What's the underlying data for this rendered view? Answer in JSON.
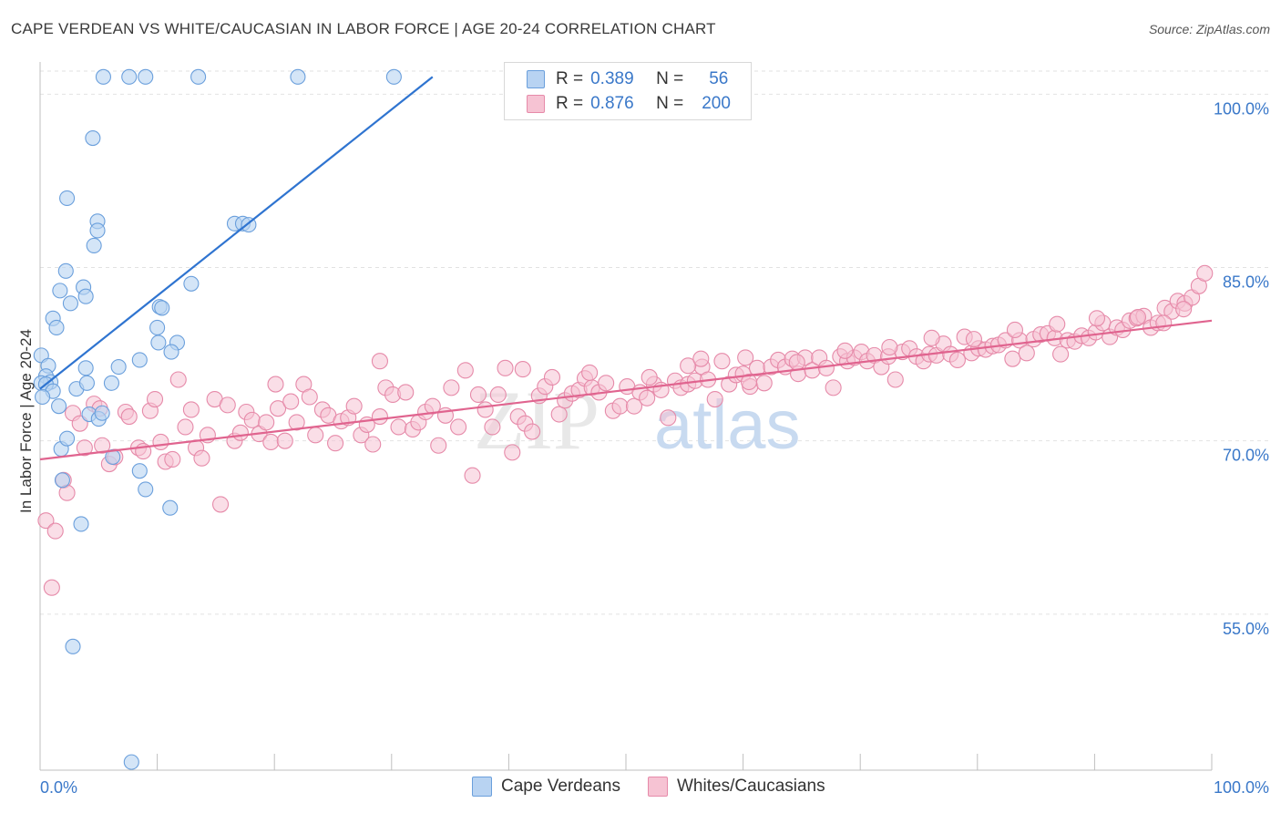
{
  "title": "CAPE VERDEAN VS WHITE/CAUCASIAN IN LABOR FORCE | AGE 20-24 CORRELATION CHART",
  "source": "Source: ZipAtlas.com",
  "watermark": {
    "zip": "ZIP",
    "atlas": "atlas"
  },
  "legend": {
    "rows": [
      {
        "r_label": "R =",
        "r_value": "0.389",
        "n_label": "N =",
        "n_value": "56"
      },
      {
        "r_label": "R =",
        "r_value": "0.876",
        "n_label": "N =",
        "n_value": "200"
      }
    ]
  },
  "bottom_legend": [
    "Cape Verdeans",
    "Whites/Caucasians"
  ],
  "colors": {
    "blue_fill": "#b8d3f2",
    "blue_stroke": "#6a9fdc",
    "blue_line": "#2f74d0",
    "pink_fill": "#f6c3d3",
    "pink_stroke": "#e68aa9",
    "pink_line": "#e0648f",
    "tick_text": "#3a78c9"
  },
  "chart_data": {
    "type": "scatter",
    "title": "CAPE VERDEAN VS WHITE/CAUCASIAN IN LABOR FORCE | AGE 20-24 CORRELATION CHART",
    "xlabel": "",
    "ylabel": "In Labor Force | Age 20-24",
    "xlim": [
      0,
      100
    ],
    "ylim": [
      41.5,
      102
    ],
    "x_tick_labels": [
      "0.0%",
      "100.0%"
    ],
    "y_ticks": [
      55,
      70,
      85,
      100
    ],
    "y_tick_labels": [
      "55.0%",
      "70.0%",
      "85.0%",
      "100.0%"
    ],
    "series": [
      {
        "name": "Cape Verdeans",
        "trend": {
          "x": [
            0,
            33.5
          ],
          "y": [
            74.5,
            101.5
          ]
        },
        "points": [
          [
            5.4,
            101.5
          ],
          [
            7.6,
            101.5
          ],
          [
            9.0,
            101.5
          ],
          [
            13.5,
            101.5
          ],
          [
            22.0,
            101.5
          ],
          [
            30.2,
            101.5
          ],
          [
            4.5,
            96.2
          ],
          [
            2.3,
            91.0
          ],
          [
            4.9,
            89.0
          ],
          [
            4.9,
            88.2
          ],
          [
            4.6,
            86.9
          ],
          [
            16.6,
            88.8
          ],
          [
            17.3,
            88.8
          ],
          [
            17.8,
            88.7
          ],
          [
            2.2,
            84.7
          ],
          [
            1.7,
            83.0
          ],
          [
            3.7,
            83.3
          ],
          [
            3.9,
            82.5
          ],
          [
            2.6,
            81.9
          ],
          [
            1.1,
            80.6
          ],
          [
            1.4,
            79.8
          ],
          [
            10.2,
            81.6
          ],
          [
            10.4,
            81.5
          ],
          [
            12.9,
            83.6
          ],
          [
            0.1,
            77.4
          ],
          [
            0.7,
            76.5
          ],
          [
            0.5,
            75.6
          ],
          [
            0.9,
            75.1
          ],
          [
            0.1,
            75.0
          ],
          [
            0.5,
            74.9
          ],
          [
            1.1,
            74.3
          ],
          [
            0.2,
            73.8
          ],
          [
            3.1,
            74.5
          ],
          [
            4.0,
            75.0
          ],
          [
            6.1,
            75.0
          ],
          [
            3.9,
            76.3
          ],
          [
            6.7,
            76.4
          ],
          [
            8.5,
            77.0
          ],
          [
            10.0,
            79.8
          ],
          [
            10.1,
            78.5
          ],
          [
            11.7,
            78.5
          ],
          [
            11.2,
            77.7
          ],
          [
            1.6,
            73.0
          ],
          [
            4.2,
            72.3
          ],
          [
            5.0,
            71.9
          ],
          [
            5.3,
            72.4
          ],
          [
            1.8,
            69.3
          ],
          [
            2.3,
            70.2
          ],
          [
            6.2,
            68.6
          ],
          [
            8.5,
            67.4
          ],
          [
            9.0,
            65.8
          ],
          [
            11.1,
            64.2
          ],
          [
            1.9,
            66.6
          ],
          [
            3.5,
            62.8
          ],
          [
            2.8,
            52.2
          ],
          [
            7.8,
            42.2
          ]
        ]
      },
      {
        "name": "Whites/Caucasians",
        "trend": {
          "x": [
            0,
            100
          ],
          "y": [
            68.4,
            80.4
          ]
        },
        "points": [
          [
            0.5,
            63.1
          ],
          [
            1.3,
            62.2
          ],
          [
            1.0,
            57.3
          ],
          [
            2.0,
            66.6
          ],
          [
            2.3,
            65.5
          ],
          [
            2.8,
            72.4
          ],
          [
            3.4,
            71.5
          ],
          [
            3.8,
            69.4
          ],
          [
            4.6,
            73.2
          ],
          [
            5.1,
            72.8
          ],
          [
            5.3,
            69.6
          ],
          [
            5.9,
            68.0
          ],
          [
            6.4,
            68.6
          ],
          [
            7.3,
            72.5
          ],
          [
            7.6,
            72.1
          ],
          [
            8.4,
            69.4
          ],
          [
            8.8,
            69.1
          ],
          [
            9.4,
            72.6
          ],
          [
            9.8,
            73.6
          ],
          [
            10.3,
            69.9
          ],
          [
            10.7,
            68.2
          ],
          [
            11.3,
            68.4
          ],
          [
            11.8,
            75.3
          ],
          [
            12.4,
            71.2
          ],
          [
            12.9,
            72.7
          ],
          [
            13.3,
            69.4
          ],
          [
            13.8,
            68.5
          ],
          [
            14.3,
            70.5
          ],
          [
            14.9,
            73.6
          ],
          [
            15.4,
            64.5
          ],
          [
            16.0,
            73.1
          ],
          [
            16.6,
            70.0
          ],
          [
            17.1,
            70.7
          ],
          [
            17.6,
            72.5
          ],
          [
            18.1,
            71.8
          ],
          [
            18.7,
            70.6
          ],
          [
            19.3,
            71.6
          ],
          [
            19.7,
            69.9
          ],
          [
            20.3,
            72.8
          ],
          [
            20.9,
            70.0
          ],
          [
            21.4,
            73.4
          ],
          [
            21.9,
            71.6
          ],
          [
            22.5,
            74.9
          ],
          [
            23.0,
            73.8
          ],
          [
            23.5,
            70.5
          ],
          [
            24.1,
            72.7
          ],
          [
            24.6,
            72.2
          ],
          [
            25.2,
            69.8
          ],
          [
            25.7,
            71.7
          ],
          [
            26.3,
            72.0
          ],
          [
            26.8,
            73.0
          ],
          [
            27.4,
            70.5
          ],
          [
            27.9,
            71.4
          ],
          [
            28.4,
            69.7
          ],
          [
            29.0,
            72.1
          ],
          [
            29.5,
            74.6
          ],
          [
            30.1,
            74.0
          ],
          [
            30.6,
            71.2
          ],
          [
            31.2,
            74.2
          ],
          [
            31.8,
            71.0
          ],
          [
            32.3,
            71.6
          ],
          [
            32.9,
            72.5
          ],
          [
            33.5,
            73.0
          ],
          [
            34.0,
            69.6
          ],
          [
            34.6,
            72.2
          ],
          [
            35.1,
            74.6
          ],
          [
            35.7,
            71.2
          ],
          [
            36.3,
            76.1
          ],
          [
            36.9,
            67.0
          ],
          [
            37.4,
            74.0
          ],
          [
            38.0,
            72.7
          ],
          [
            38.6,
            71.2
          ],
          [
            39.1,
            74.0
          ],
          [
            39.7,
            76.3
          ],
          [
            40.3,
            69.0
          ],
          [
            40.8,
            72.1
          ],
          [
            41.4,
            71.5
          ],
          [
            42.0,
            70.8
          ],
          [
            42.6,
            73.9
          ],
          [
            43.1,
            74.7
          ],
          [
            43.7,
            75.5
          ],
          [
            44.3,
            72.3
          ],
          [
            44.8,
            73.5
          ],
          [
            45.4,
            74.1
          ],
          [
            46.0,
            74.4
          ],
          [
            46.5,
            75.4
          ],
          [
            47.1,
            74.6
          ],
          [
            47.7,
            74.2
          ],
          [
            48.3,
            75.0
          ],
          [
            48.9,
            72.6
          ],
          [
            49.5,
            73.0
          ],
          [
            50.1,
            74.7
          ],
          [
            50.7,
            73.0
          ],
          [
            51.2,
            74.2
          ],
          [
            51.8,
            73.7
          ],
          [
            52.4,
            74.9
          ],
          [
            53.0,
            74.4
          ],
          [
            53.6,
            72.0
          ],
          [
            54.2,
            75.2
          ],
          [
            54.7,
            74.6
          ],
          [
            55.3,
            74.9
          ],
          [
            55.9,
            75.2
          ],
          [
            56.5,
            76.4
          ],
          [
            57.0,
            75.3
          ],
          [
            57.6,
            73.6
          ],
          [
            58.2,
            76.9
          ],
          [
            58.8,
            74.9
          ],
          [
            59.4,
            75.7
          ],
          [
            60.0,
            75.8
          ],
          [
            60.6,
            74.7
          ],
          [
            61.2,
            76.3
          ],
          [
            61.8,
            75.0
          ],
          [
            62.4,
            76.4
          ],
          [
            63.0,
            77.0
          ],
          [
            63.6,
            76.4
          ],
          [
            64.2,
            77.1
          ],
          [
            64.7,
            75.8
          ],
          [
            65.3,
            77.2
          ],
          [
            65.9,
            76.1
          ],
          [
            66.5,
            77.2
          ],
          [
            67.1,
            76.3
          ],
          [
            67.7,
            74.6
          ],
          [
            68.3,
            77.3
          ],
          [
            68.9,
            76.9
          ],
          [
            69.5,
            77.2
          ],
          [
            70.1,
            77.7
          ],
          [
            70.6,
            76.9
          ],
          [
            71.2,
            77.4
          ],
          [
            71.8,
            76.4
          ],
          [
            72.4,
            77.3
          ],
          [
            73.0,
            75.3
          ],
          [
            73.6,
            77.7
          ],
          [
            74.2,
            78.0
          ],
          [
            74.8,
            77.3
          ],
          [
            75.4,
            76.9
          ],
          [
            75.9,
            77.5
          ],
          [
            76.5,
            77.4
          ],
          [
            77.1,
            78.4
          ],
          [
            77.7,
            77.5
          ],
          [
            78.3,
            77.0
          ],
          [
            78.9,
            79.0
          ],
          [
            79.5,
            77.6
          ],
          [
            80.1,
            78.0
          ],
          [
            80.7,
            77.9
          ],
          [
            81.3,
            78.2
          ],
          [
            81.8,
            78.3
          ],
          [
            82.4,
            78.7
          ],
          [
            83.0,
            77.1
          ],
          [
            83.6,
            78.7
          ],
          [
            84.2,
            77.6
          ],
          [
            84.8,
            78.8
          ],
          [
            85.4,
            79.2
          ],
          [
            86.0,
            79.3
          ],
          [
            86.6,
            78.9
          ],
          [
            87.1,
            77.5
          ],
          [
            87.7,
            78.7
          ],
          [
            88.3,
            78.6
          ],
          [
            88.9,
            79.1
          ],
          [
            89.5,
            78.9
          ],
          [
            90.1,
            79.4
          ],
          [
            90.7,
            80.2
          ],
          [
            91.3,
            79.0
          ],
          [
            91.9,
            79.8
          ],
          [
            92.4,
            79.6
          ],
          [
            93.0,
            80.4
          ],
          [
            93.6,
            80.6
          ],
          [
            94.2,
            80.8
          ],
          [
            94.8,
            79.8
          ],
          [
            95.4,
            80.2
          ],
          [
            96.0,
            81.5
          ],
          [
            96.6,
            81.2
          ],
          [
            97.1,
            82.1
          ],
          [
            97.7,
            81.9
          ],
          [
            98.3,
            82.4
          ],
          [
            98.9,
            83.4
          ],
          [
            99.4,
            84.5
          ],
          [
            20.1,
            74.9
          ],
          [
            29.0,
            76.9
          ],
          [
            41.2,
            76.2
          ],
          [
            46.9,
            75.9
          ],
          [
            52.0,
            75.5
          ],
          [
            55.3,
            76.5
          ],
          [
            60.2,
            77.2
          ],
          [
            64.6,
            76.8
          ],
          [
            68.7,
            77.8
          ],
          [
            72.5,
            78.1
          ],
          [
            76.1,
            78.9
          ],
          [
            79.7,
            78.8
          ],
          [
            83.2,
            79.6
          ],
          [
            86.8,
            80.1
          ],
          [
            90.2,
            80.6
          ],
          [
            93.7,
            80.7
          ],
          [
            95.9,
            80.2
          ],
          [
            97.6,
            81.4
          ],
          [
            60.5,
            75.1
          ],
          [
            56.4,
            77.1
          ]
        ]
      }
    ]
  }
}
